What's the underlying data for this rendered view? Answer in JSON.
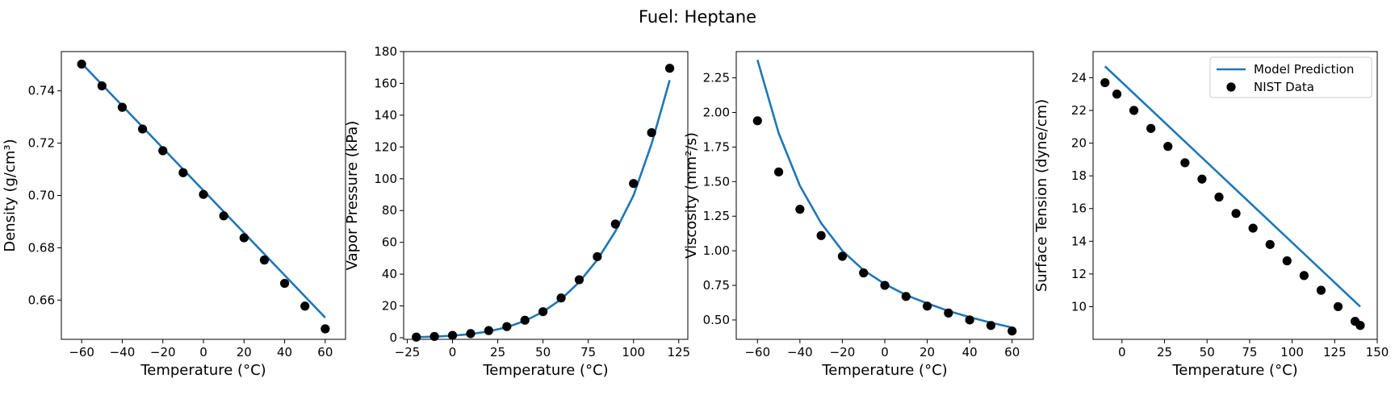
{
  "figure": {
    "title": "Fuel: Heptane"
  },
  "legend": {
    "model_label": "Model Prediction",
    "data_label": "NIST Data",
    "placement": "upper-right of last panel"
  },
  "colors": {
    "model": "#1f77b4",
    "data": "#000000",
    "axes": "#000000"
  },
  "chart_data": [
    {
      "type": "line+scatter",
      "xlabel": "Temperature (°C)",
      "ylabel": "Density (g/cm³)",
      "xlim": [
        -70,
        70
      ],
      "ylim": [
        0.645,
        0.755
      ],
      "xticks": [
        -60,
        -40,
        -20,
        0,
        20,
        40,
        60
      ],
      "yticks": [
        0.66,
        0.68,
        0.7,
        0.72,
        0.74
      ],
      "ytick_decimals": 2,
      "model": {
        "x": [
          -60,
          60
        ],
        "y": [
          0.7505,
          0.6533
        ]
      },
      "data": {
        "x": [
          -60,
          -50,
          -40,
          -30,
          -20,
          -10,
          0,
          10,
          20,
          30,
          40,
          50,
          60
        ],
        "y": [
          0.7502,
          0.7419,
          0.7337,
          0.7254,
          0.7171,
          0.7087,
          0.7004,
          0.6922,
          0.6838,
          0.6753,
          0.6664,
          0.6577,
          0.649
        ]
      }
    },
    {
      "type": "line+scatter",
      "xlabel": "Temperature (°C)",
      "ylabel": "Vapor Pressure (kPa)",
      "xlim": [
        -27,
        130
      ],
      "ylim": [
        -1,
        180
      ],
      "xticks": [
        -25,
        0,
        25,
        50,
        75,
        100,
        125
      ],
      "yticks": [
        0,
        20,
        40,
        60,
        80,
        100,
        120,
        140,
        160,
        180
      ],
      "ytick_decimals": 0,
      "model": {
        "x": [
          -20,
          -10,
          0,
          10,
          20,
          30,
          40,
          50,
          60,
          70,
          80,
          90,
          100,
          110,
          120
        ],
        "y": [
          0.4,
          0.7,
          1.3,
          2.3,
          4.0,
          6.6,
          10.6,
          16.3,
          24.2,
          35.0,
          49.0,
          67.0,
          89.5,
          122.0,
          162.0
        ]
      },
      "data": {
        "x": [
          -20,
          -10,
          0,
          10,
          20,
          30,
          40,
          50,
          60,
          70,
          80,
          90,
          100,
          110,
          120
        ],
        "y": [
          0.4,
          0.8,
          1.5,
          2.6,
          4.5,
          7.0,
          11.0,
          16.4,
          25.0,
          36.5,
          51.0,
          71.5,
          97.0,
          129.0,
          169.5
        ]
      }
    },
    {
      "type": "line+scatter",
      "xlabel": "Temperature (°C)",
      "ylabel": "Viscosity (mm²/s)",
      "xlim": [
        -70,
        70
      ],
      "ylim": [
        0.36,
        2.44
      ],
      "xticks": [
        -60,
        -40,
        -20,
        0,
        20,
        40,
        60
      ],
      "yticks": [
        0.5,
        0.75,
        1.0,
        1.25,
        1.5,
        1.75,
        2.0,
        2.25
      ],
      "ytick_decimals": 2,
      "model": {
        "x": [
          -60,
          -50,
          -40,
          -30,
          -20,
          -10,
          0,
          10,
          20,
          30,
          40,
          50,
          60
        ],
        "y": [
          2.38,
          1.85,
          1.47,
          1.2,
          1.0,
          0.86,
          0.76,
          0.68,
          0.62,
          0.565,
          0.52,
          0.48,
          0.445
        ]
      },
      "data": {
        "x": [
          -60,
          -50,
          -40,
          -30,
          -20,
          -10,
          0,
          10,
          20,
          30,
          40,
          50,
          60
        ],
        "y": [
          1.94,
          1.57,
          1.3,
          1.11,
          0.96,
          0.84,
          0.75,
          0.67,
          0.6,
          0.55,
          0.5,
          0.46,
          0.42
        ]
      }
    },
    {
      "type": "line+scatter",
      "xlabel": "Temperature (°C)",
      "ylabel": "Surface Tension (dyne/cm)",
      "xlim": [
        -17,
        150
      ],
      "ylim": [
        8,
        25.6
      ],
      "xticks": [
        0,
        25,
        50,
        75,
        100,
        125,
        150
      ],
      "yticks": [
        10,
        12,
        14,
        16,
        18,
        20,
        22,
        24
      ],
      "ytick_decimals": 0,
      "legend": true,
      "model": {
        "x": [
          -10,
          140
        ],
        "y": [
          24.7,
          10.0
        ]
      },
      "data": {
        "x": [
          -10,
          -3,
          7,
          17,
          27,
          37,
          47,
          57,
          67,
          77,
          87,
          97,
          107,
          117,
          127,
          137,
          140
        ],
        "y": [
          23.7,
          23.0,
          22.0,
          20.9,
          19.8,
          18.8,
          17.8,
          16.7,
          15.7,
          14.8,
          13.8,
          12.8,
          11.9,
          11.0,
          10.0,
          9.1,
          8.85
        ]
      }
    }
  ]
}
